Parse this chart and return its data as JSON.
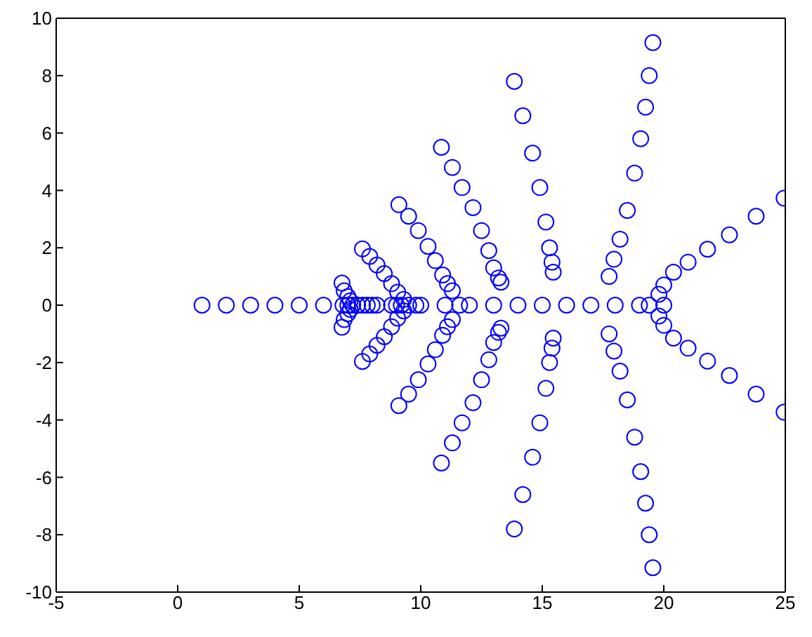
{
  "chart_data": {
    "type": "scatter",
    "marker": "circle",
    "xlim": [
      -5,
      25
    ],
    "xticks": [
      -5,
      0,
      5,
      10,
      15,
      20,
      25
    ],
    "ylim": [
      -10,
      10
    ],
    "yticks": [
      -10,
      -8,
      -6,
      -4,
      -2,
      0,
      2,
      4,
      6,
      8,
      10
    ],
    "series": [
      {
        "color": "#0000ff",
        "x": [
          1,
          2,
          3,
          4,
          5,
          6,
          6.8,
          7,
          7.2,
          7.4,
          7.6,
          7.8,
          8,
          8.2,
          8.8,
          9,
          9.2,
          9.5,
          9.8,
          10,
          11,
          11.6,
          12,
          13,
          14,
          15,
          16,
          17,
          18,
          19,
          19.4,
          20,
          6.76,
          6.85,
          7.0,
          7.1,
          7.6,
          7.9,
          8.2,
          8.5,
          8.8,
          9.05,
          9.3,
          9.1,
          9.5,
          9.9,
          10.3,
          10.6,
          10.9,
          11.1,
          11.3,
          10.85,
          11.3,
          11.7,
          12.15,
          12.5,
          12.8,
          13.0,
          13.2,
          13.3,
          13.85,
          14.2,
          14.6,
          14.9,
          15.15,
          15.3,
          15.4,
          15.45,
          19.55,
          19.4,
          19.25,
          19.05,
          18.8,
          18.5,
          18.2,
          17.95,
          17.75,
          19.8,
          20.0,
          20.4,
          21.0,
          21.8,
          22.7,
          23.8,
          24.95,
          6.76,
          6.85,
          7.0,
          7.1,
          7.6,
          7.9,
          8.2,
          8.5,
          8.8,
          9.05,
          9.3,
          9.1,
          9.5,
          9.9,
          10.3,
          10.6,
          10.9,
          11.1,
          11.3,
          10.85,
          11.3,
          11.7,
          12.15,
          12.5,
          12.8,
          13.0,
          13.2,
          13.3,
          13.85,
          14.2,
          14.6,
          14.9,
          15.15,
          15.3,
          15.4,
          15.45,
          19.55,
          19.4,
          19.25,
          19.05,
          18.8,
          18.5,
          18.2,
          17.95,
          17.75,
          19.8,
          20.0,
          20.4,
          21.0,
          21.8,
          22.7,
          23.8,
          24.95
        ],
        "values": [
          0,
          0,
          0,
          0,
          0,
          0,
          0,
          0,
          0,
          0,
          0,
          0,
          0,
          0,
          0,
          0,
          0,
          0,
          0,
          0,
          0,
          0,
          0,
          0,
          0,
          0,
          0,
          0,
          0,
          0,
          0,
          0,
          0.77,
          0.5,
          0.3,
          0.15,
          1.96,
          1.7,
          1.4,
          1.1,
          0.75,
          0.45,
          0.2,
          3.5,
          3.1,
          2.6,
          2.05,
          1.55,
          1.05,
          0.75,
          0.5,
          5.5,
          4.8,
          4.1,
          3.4,
          2.6,
          1.9,
          1.3,
          0.95,
          0.8,
          7.8,
          6.6,
          5.3,
          4.1,
          2.9,
          2.0,
          1.5,
          1.15,
          9.15,
          8.0,
          6.9,
          5.8,
          4.6,
          3.3,
          2.3,
          1.6,
          1.0,
          0.38,
          0.7,
          1.15,
          1.5,
          1.95,
          2.45,
          3.1,
          3.73,
          -0.77,
          -0.5,
          -0.3,
          -0.15,
          -1.96,
          -1.7,
          -1.4,
          -1.1,
          -0.75,
          -0.45,
          -0.2,
          -3.5,
          -3.1,
          -2.6,
          -2.05,
          -1.55,
          -1.05,
          -0.75,
          -0.5,
          -5.5,
          -4.8,
          -4.1,
          -3.4,
          -2.6,
          -1.9,
          -1.3,
          -0.95,
          -0.8,
          -7.8,
          -6.6,
          -5.3,
          -4.1,
          -2.9,
          -2.0,
          -1.5,
          -1.15,
          -9.15,
          -8.0,
          -6.9,
          -5.8,
          -4.6,
          -3.3,
          -2.3,
          -1.6,
          -1.0,
          -0.38,
          -0.7,
          -1.15,
          -1.5,
          -1.95,
          -2.45,
          -3.1,
          -3.73
        ]
      }
    ]
  }
}
